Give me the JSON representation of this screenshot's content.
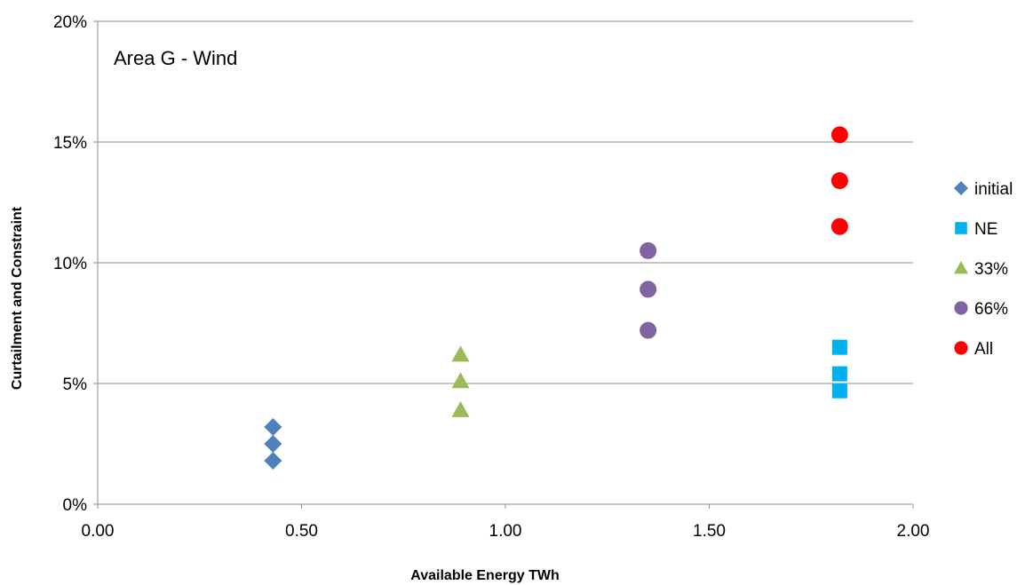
{
  "chart_data": {
    "type": "scatter",
    "title": "",
    "annotation": "Area G - Wind",
    "xlabel": "Available Energy TWh",
    "ylabel": "Curtailment and Constraint",
    "xlim": [
      0,
      2
    ],
    "ylim": [
      0,
      20
    ],
    "x_ticks": [
      "0.00",
      "0.50",
      "1.00",
      "1.50",
      "2.00"
    ],
    "y_ticks": [
      "0%",
      "5%",
      "10%",
      "15%",
      "20%"
    ],
    "grid": "horizontal",
    "legend_position": "right",
    "series": [
      {
        "name": "initial",
        "marker": "diamond",
        "color": "#4f81bd",
        "points": [
          [
            0.43,
            3.2
          ],
          [
            0.43,
            2.5
          ],
          [
            0.43,
            1.8
          ]
        ]
      },
      {
        "name": "NE",
        "marker": "square",
        "color": "#00b0f0",
        "points": [
          [
            1.82,
            6.5
          ],
          [
            1.82,
            5.4
          ],
          [
            1.82,
            4.7
          ]
        ]
      },
      {
        "name": "33%",
        "marker": "triangle",
        "color": "#9bbb59",
        "points": [
          [
            0.89,
            6.2
          ],
          [
            0.89,
            5.1
          ],
          [
            0.89,
            3.9
          ]
        ]
      },
      {
        "name": "66%",
        "marker": "circle",
        "color": "#8064a2",
        "points": [
          [
            1.35,
            10.5
          ],
          [
            1.35,
            8.9
          ],
          [
            1.35,
            7.2
          ]
        ]
      },
      {
        "name": "All",
        "marker": "circle",
        "color": "#ff0000",
        "points": [
          [
            1.82,
            15.3
          ],
          [
            1.82,
            13.4
          ],
          [
            1.82,
            11.5
          ]
        ]
      }
    ]
  }
}
